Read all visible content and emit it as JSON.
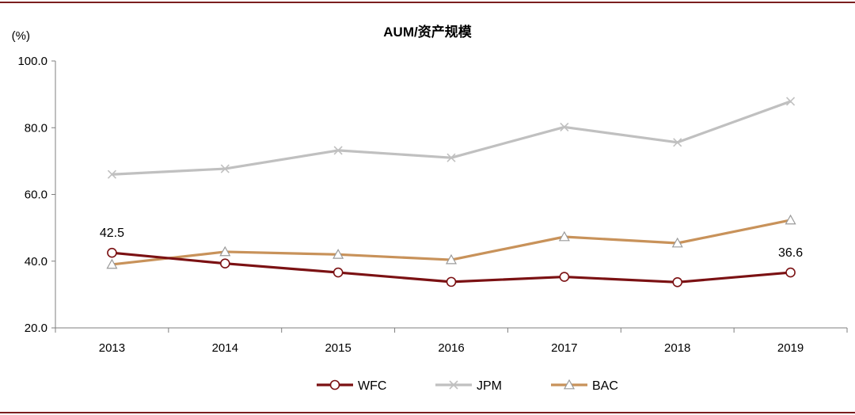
{
  "chart_data": {
    "type": "line",
    "title": "AUM/资产规模",
    "ylabel": "(%)",
    "xlabel": "",
    "ylim": [
      20,
      100
    ],
    "yticks": [
      "20.0",
      "40.0",
      "60.0",
      "80.0",
      "100.0"
    ],
    "categories": [
      "2013",
      "2014",
      "2015",
      "2016",
      "2017",
      "2018",
      "2019"
    ],
    "series": [
      {
        "name": "WFC",
        "color": "#7b1113",
        "marker": "circle",
        "values": [
          42.5,
          39.3,
          36.6,
          33.8,
          35.3,
          33.7,
          36.6
        ]
      },
      {
        "name": "JPM",
        "color": "#c0c0c0",
        "marker": "x",
        "values": [
          66.0,
          67.7,
          73.2,
          71.0,
          80.2,
          75.6,
          87.9
        ]
      },
      {
        "name": "BAC",
        "color": "#c8925a",
        "marker": "triangle",
        "values": [
          39.0,
          42.8,
          42.0,
          40.4,
          47.3,
          45.4,
          52.3
        ]
      }
    ],
    "data_labels": [
      {
        "series": "WFC",
        "index": 0,
        "text": "42.5"
      },
      {
        "series": "WFC",
        "index": 6,
        "text": "36.6"
      }
    ],
    "legend_position": "bottom-center",
    "grid": false
  }
}
